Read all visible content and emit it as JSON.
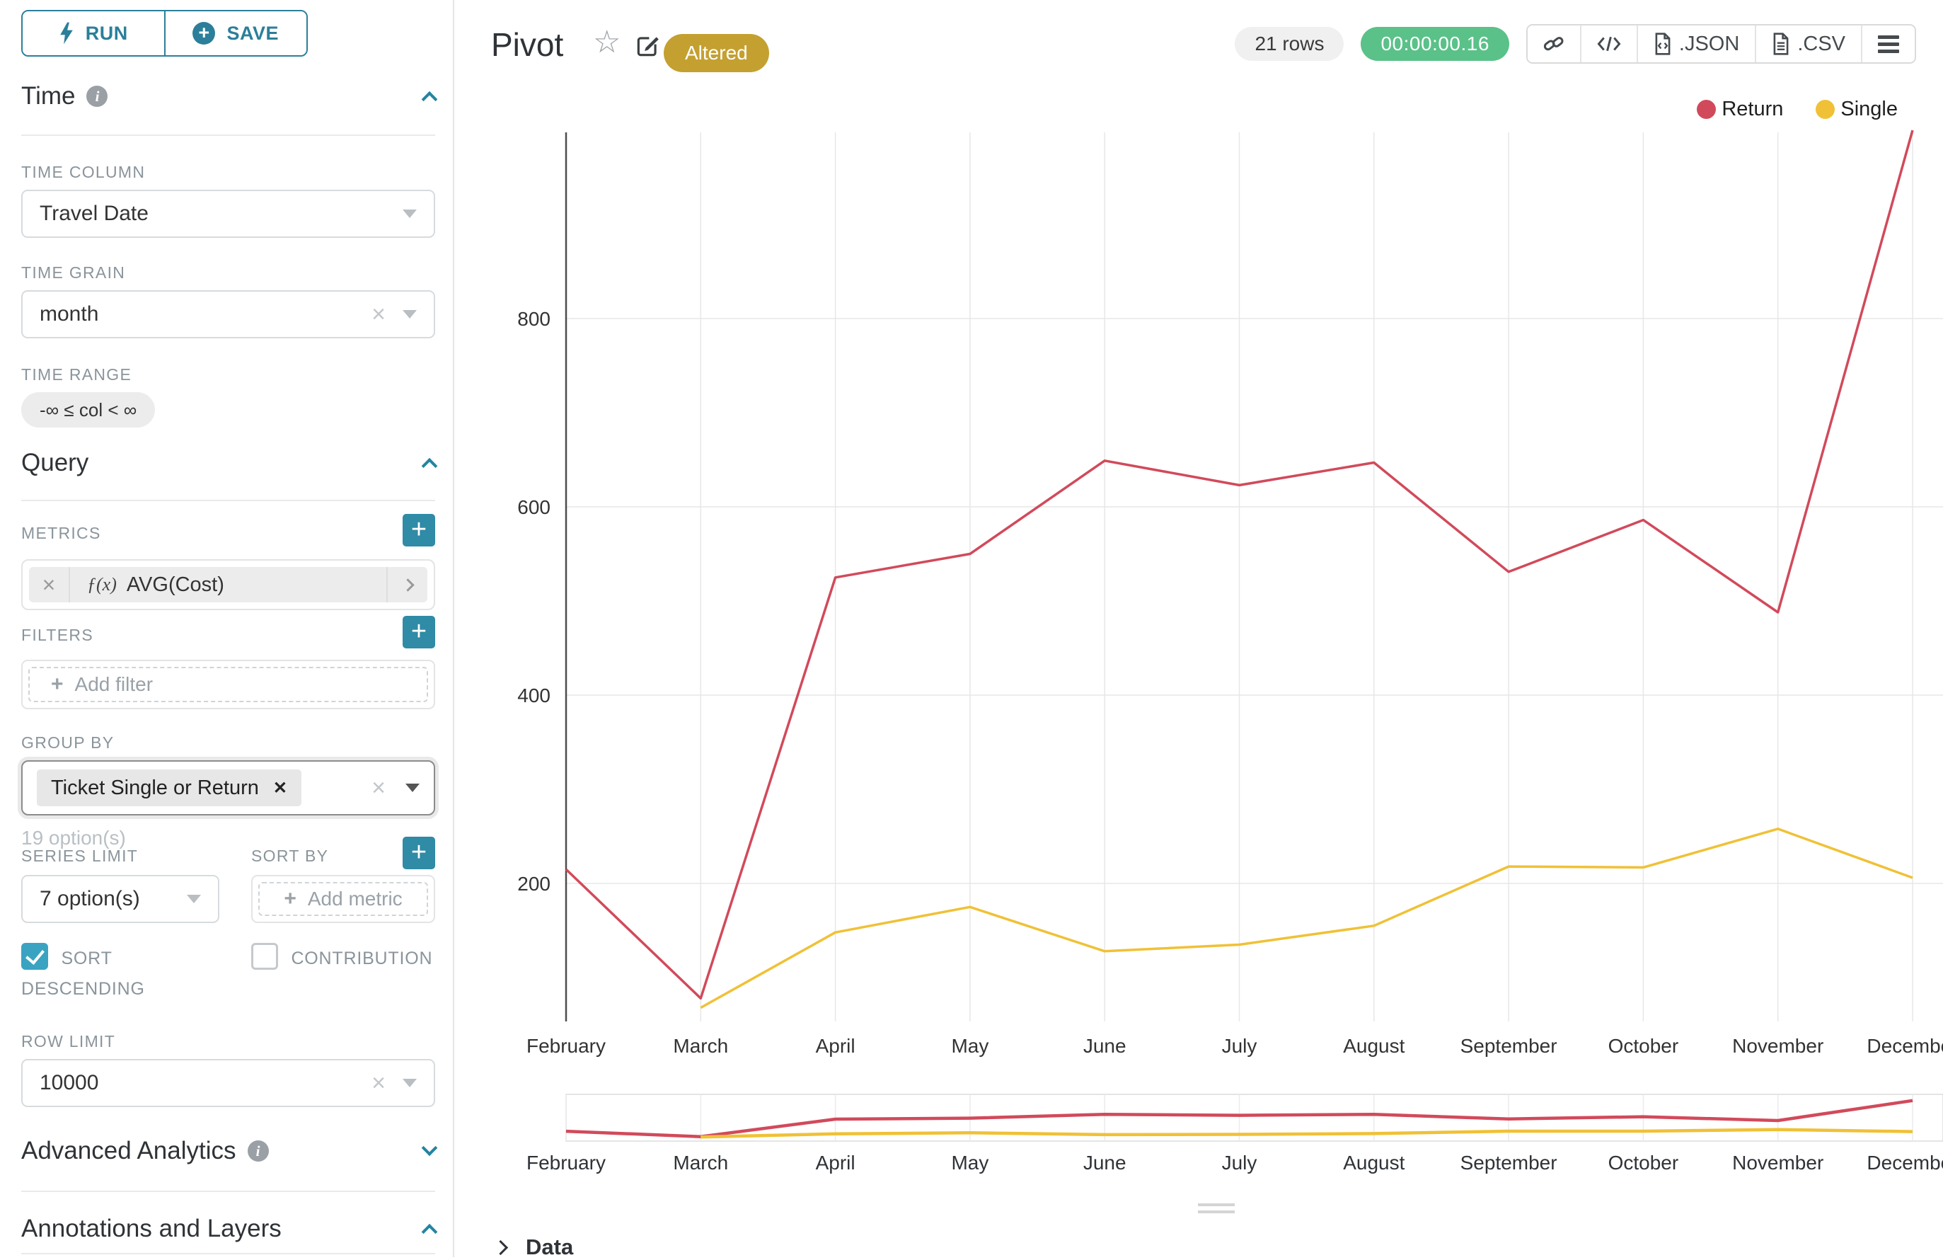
{
  "sidebar": {
    "run_label": "RUN",
    "save_label": "SAVE",
    "time_title": "Time",
    "time_column_label": "TIME COLUMN",
    "time_column_value": "Travel Date",
    "time_grain_label": "TIME GRAIN",
    "time_grain_value": "month",
    "time_range_label": "TIME RANGE",
    "time_range_value": "-∞ ≤ col < ∞",
    "query_title": "Query",
    "metrics_label": "METRICS",
    "metric_prefix": "ƒ(x)",
    "metric_value": "AVG(Cost)",
    "filters_label": "FILTERS",
    "add_filter_label": "Add filter",
    "group_by_label": "GROUP BY",
    "group_by_value": "Ticket Single or Return",
    "group_by_hint": "19 option(s)",
    "series_limit_label": "SERIES LIMIT",
    "series_limit_value": "7 option(s)",
    "sort_by_label": "SORT BY",
    "add_metric_label": "Add metric",
    "sort_descending_label": "SORT DESCENDING",
    "contribution_label": "CONTRIBUTION",
    "row_limit_label": "ROW LIMIT",
    "row_limit_value": "10000",
    "advanced_analytics_title": "Advanced Analytics",
    "annotations_title": "Annotations and Layers"
  },
  "header": {
    "title": "Pivot",
    "altered_badge": "Altered",
    "rows_badge": "21 rows",
    "timer_badge": "00:00:00.16",
    "export_json_label": ".JSON",
    "export_csv_label": ".CSV"
  },
  "footer": {
    "data_label": "Data"
  },
  "colors": {
    "accent_teal": "#2b7f9a",
    "plus_button_teal": "#2f8ba6",
    "checkbox_teal": "#3aa3c2",
    "altered_gold": "#c4a030",
    "timer_green": "#5ac189",
    "return_red": "#d14a5b",
    "single_yellow": "#f0c136"
  },
  "chart_data": {
    "type": "line",
    "title": "Pivot",
    "categories": [
      "February",
      "March",
      "April",
      "May",
      "June",
      "July",
      "August",
      "September",
      "October",
      "November",
      "December"
    ],
    "series": [
      {
        "name": "Return",
        "color": "#d14a5b",
        "values": [
          215,
          78,
          525,
          550,
          649,
          623,
          647,
          531,
          586,
          488,
          1000
        ]
      },
      {
        "name": "Single",
        "color": "#f0c136",
        "values": [
          null,
          68,
          148,
          175,
          128,
          135,
          155,
          218,
          217,
          258,
          206
        ]
      }
    ],
    "xlabel": "",
    "ylabel": "",
    "yticks": [
      200,
      400,
      600,
      800
    ],
    "ylim": [
      54,
      1000
    ],
    "grid": true,
    "legend_position": "top-right",
    "has_range_selector": true
  }
}
